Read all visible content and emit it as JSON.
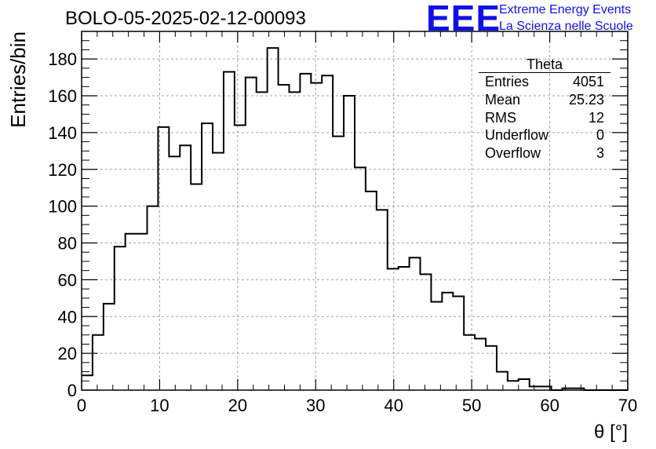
{
  "header": {
    "run_title": "BOLO-05-2025-02-12-00093",
    "logo_text": "EEE",
    "logo_line1": "Extreme Energy Events",
    "logo_line2": "La Scienza nelle Scuole"
  },
  "stats_box": {
    "title": "Theta",
    "rows": [
      {
        "label": "Entries",
        "value": "4051"
      },
      {
        "label": "Mean",
        "value": "25.23"
      },
      {
        "label": "RMS",
        "value": "12"
      },
      {
        "label": "Underflow",
        "value": "0"
      },
      {
        "label": "Overflow",
        "value": "3"
      }
    ]
  },
  "chart_data": {
    "type": "histogram",
    "xlabel": "θ [°]",
    "ylabel": "Entries/bin",
    "xlim": [
      0,
      70
    ],
    "ylim": [
      0,
      195
    ],
    "bin_width": 1.4,
    "bin_start": 0,
    "values": [
      8,
      30,
      47,
      78,
      85,
      85,
      100,
      143,
      127,
      133,
      112,
      145,
      129,
      173,
      144,
      170,
      162,
      186,
      166,
      162,
      172,
      167,
      171,
      138,
      160,
      121,
      108,
      98,
      66,
      67,
      72,
      63,
      48,
      53,
      51,
      30,
      28,
      24,
      10,
      5,
      6,
      2,
      2,
      0,
      1,
      1,
      0,
      0,
      0,
      0
    ],
    "x_ticks": [
      0,
      10,
      20,
      30,
      40,
      50,
      60,
      70
    ],
    "y_ticks": [
      0,
      20,
      40,
      60,
      80,
      100,
      120,
      140,
      160,
      180
    ],
    "grid": true,
    "line_color": "#000000",
    "grid_color": "#a0a0a0"
  }
}
